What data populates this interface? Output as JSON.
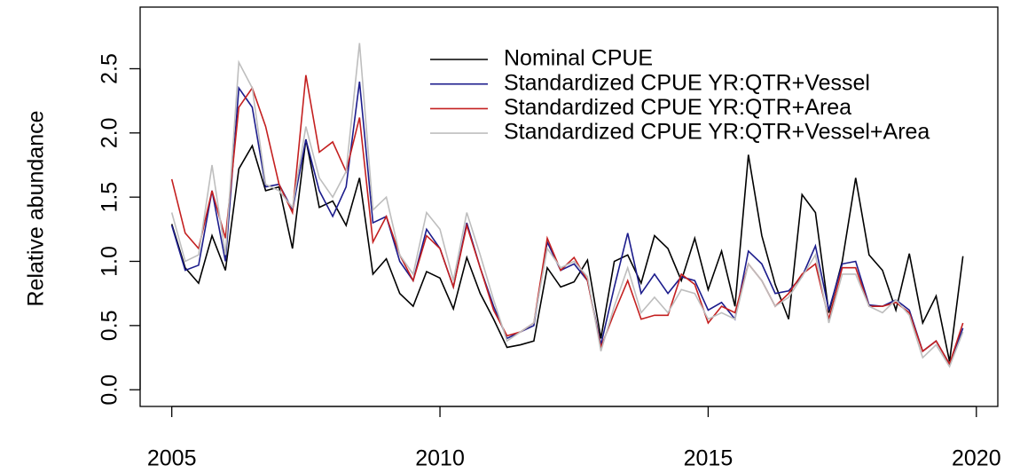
{
  "chart_data": {
    "type": "line",
    "ylabel": "Relative abundance",
    "x": [
      2005,
      2005.25,
      2005.5,
      2005.75,
      2006,
      2006.25,
      2006.5,
      2006.75,
      2007,
      2007.25,
      2007.5,
      2007.75,
      2008,
      2008.25,
      2008.5,
      2008.75,
      2009,
      2009.25,
      2009.5,
      2009.75,
      2010,
      2010.25,
      2010.5,
      2010.75,
      2011,
      2011.25,
      2011.5,
      2011.75,
      2012,
      2012.25,
      2012.5,
      2012.75,
      2013,
      2013.25,
      2013.5,
      2013.75,
      2014,
      2014.25,
      2014.5,
      2014.75,
      2015,
      2015.25,
      2015.5,
      2015.75,
      2016,
      2016.25,
      2016.5,
      2016.75,
      2017,
      2017.25,
      2017.5,
      2017.75,
      2018,
      2018.25,
      2018.5,
      2018.75,
      2019,
      2019.25,
      2019.5,
      2019.75
    ],
    "series": [
      {
        "name": "Nominal CPUE",
        "color": "#000000",
        "values": [
          1.29,
          0.95,
          0.83,
          1.2,
          0.93,
          1.72,
          1.9,
          1.55,
          1.58,
          1.1,
          1.95,
          1.42,
          1.47,
          1.28,
          1.65,
          0.9,
          1.02,
          0.75,
          0.65,
          0.92,
          0.87,
          0.63,
          1.03,
          0.75,
          0.55,
          0.33,
          0.35,
          0.38,
          0.95,
          0.8,
          0.84,
          1.01,
          0.4,
          1.0,
          1.05,
          0.83,
          1.2,
          1.1,
          0.85,
          1.18,
          0.78,
          1.08,
          0.65,
          1.83,
          1.2,
          0.82,
          0.55,
          1.52,
          1.38,
          0.6,
          1.0,
          1.65,
          1.05,
          0.93,
          0.62,
          1.06,
          0.52,
          0.73,
          0.22,
          1.04
        ]
      },
      {
        "name": "Standardized CPUE YR:QTR+Vessel",
        "color": "#1c1c8c",
        "values": [
          1.28,
          0.93,
          0.97,
          1.55,
          1.0,
          2.35,
          2.2,
          1.58,
          1.6,
          1.4,
          1.95,
          1.55,
          1.35,
          1.58,
          2.4,
          1.3,
          1.35,
          1.0,
          0.85,
          1.25,
          1.1,
          0.8,
          1.3,
          0.95,
          0.65,
          0.4,
          0.45,
          0.5,
          1.15,
          0.93,
          0.98,
          0.85,
          0.35,
          0.8,
          1.22,
          0.75,
          0.9,
          0.75,
          0.88,
          0.85,
          0.62,
          0.68,
          0.55,
          1.08,
          0.98,
          0.75,
          0.77,
          0.88,
          1.12,
          0.62,
          0.98,
          1.0,
          0.66,
          0.65,
          0.7,
          0.62,
          0.3,
          0.38,
          0.2,
          0.48
        ]
      },
      {
        "name": "Standardized CPUE YR:QTR+Area",
        "color": "#c42020",
        "values": [
          1.64,
          1.22,
          1.1,
          1.55,
          1.18,
          2.2,
          2.35,
          2.05,
          1.6,
          1.38,
          2.45,
          1.85,
          1.93,
          1.7,
          2.12,
          1.15,
          1.35,
          1.05,
          0.85,
          1.2,
          1.1,
          0.8,
          1.28,
          0.95,
          0.62,
          0.42,
          0.45,
          0.52,
          1.18,
          0.93,
          1.03,
          0.85,
          0.33,
          0.6,
          0.85,
          0.55,
          0.58,
          0.58,
          0.9,
          0.82,
          0.52,
          0.65,
          0.6,
          0.98,
          0.85,
          0.65,
          0.75,
          0.9,
          0.98,
          0.55,
          0.95,
          0.95,
          0.65,
          0.65,
          0.68,
          0.6,
          0.3,
          0.38,
          0.2,
          0.52
        ]
      },
      {
        "name": "Standardized CPUE YR:QTR+Vessel+Area",
        "color": "#bebebe",
        "values": [
          1.38,
          1.0,
          1.05,
          1.75,
          1.05,
          2.55,
          2.35,
          1.6,
          1.55,
          1.42,
          2.05,
          1.65,
          1.5,
          1.7,
          2.7,
          1.4,
          1.5,
          1.05,
          0.9,
          1.38,
          1.25,
          0.85,
          1.38,
          1.05,
          0.7,
          0.38,
          0.45,
          0.52,
          1.1,
          0.95,
          1.0,
          0.88,
          0.3,
          0.65,
          0.95,
          0.6,
          0.72,
          0.6,
          0.78,
          0.75,
          0.55,
          0.6,
          0.55,
          0.98,
          0.85,
          0.65,
          0.72,
          0.88,
          1.05,
          0.52,
          0.9,
          0.9,
          0.65,
          0.6,
          0.7,
          0.58,
          0.25,
          0.35,
          0.18,
          0.45
        ]
      }
    ],
    "xlim": [
      2004.41,
      2020.4
    ],
    "xticks": [
      2005,
      2010,
      2015,
      2020
    ],
    "ylim": [
      -0.13,
      2.98
    ],
    "yticks": [
      {
        "value": 0,
        "label": "0.0"
      },
      0.5,
      {
        "value": 1,
        "label": "1.0"
      },
      1.5,
      {
        "value": 2,
        "label": "2.0"
      },
      2.5
    ],
    "legend": "top"
  }
}
